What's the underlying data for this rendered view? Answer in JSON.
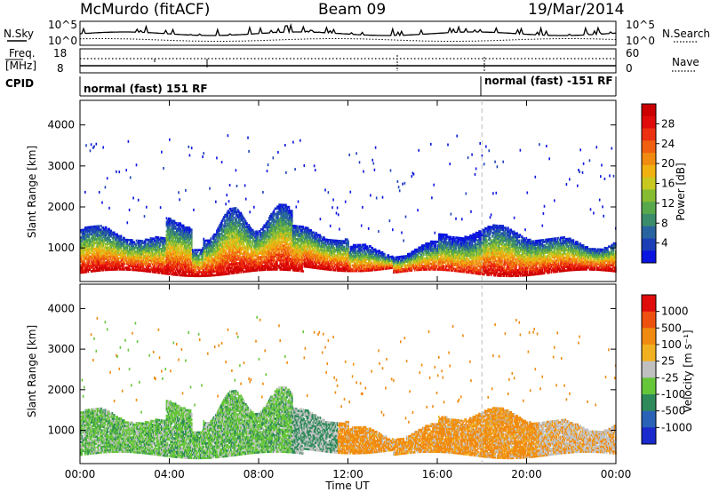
{
  "header": {
    "station": "McMurdo (fitACF)",
    "beam": "Beam 09",
    "date": "19/Mar/2014"
  },
  "params": {
    "nsky_label": "N.Sky",
    "nsearch_label": "N.Search",
    "freq_label_1": "Freq.",
    "freq_label_2": "[MHz]",
    "nave_label": "Nave",
    "cpid_label": "CPID",
    "noise_ticks_left": [
      "10^5",
      "10^0"
    ],
    "noise_ticks_right": [
      "10^5",
      "10^0"
    ],
    "freq_ticks": [
      "18",
      "8"
    ],
    "nave_ticks": [
      "60",
      "0"
    ],
    "cpid_segments": [
      {
        "label": "normal (fast) 151 RF",
        "start_hour": 0
      },
      {
        "label": "normal (fast) -151 RF",
        "start_hour": 18
      }
    ]
  },
  "chart_data": [
    {
      "type": "heatmap",
      "parameter": "power",
      "ylabel": "Slant Range [km]",
      "colorbar_label": "Power [dB]",
      "colorbar_ticks": [
        "28",
        "24",
        "20",
        "16",
        "12",
        "8",
        "4"
      ],
      "colorbar_range": [
        0,
        32
      ],
      "xlim_hours": [
        0,
        24
      ],
      "ylim_km": [
        180,
        4600
      ],
      "y_ticks": [
        "4000",
        "3000",
        "2000",
        "1000"
      ],
      "y_tick_values": [
        4000,
        3000,
        2000,
        1000
      ],
      "colors": [
        "#0a14e0",
        "#1c3fb8",
        "#2a64a0",
        "#3a8c6a",
        "#58a84c",
        "#86bc32",
        "#c8c820",
        "#f0b010",
        "#f08a10",
        "#f06010",
        "#ec3010",
        "#e00c0c",
        "#cc0000"
      ]
    },
    {
      "type": "heatmap",
      "parameter": "velocity",
      "ylabel": "Slant Range [km]",
      "colorbar_label": "Velocity [m s⁻¹]",
      "colorbar_ticks": [
        "1000",
        "500",
        "100",
        "25",
        "-25",
        "-100",
        "-500",
        "-1000"
      ],
      "xlim_hours": [
        0,
        24
      ],
      "ylim_km": [
        180,
        4600
      ],
      "y_ticks": [
        "4000",
        "3000",
        "2000",
        "1000"
      ],
      "y_tick_values": [
        4000,
        3000,
        2000,
        1000
      ],
      "colors": [
        "#1a2acc",
        "#2a62b8",
        "#2e8a5a",
        "#66c63a",
        "#c0c0c0",
        "#f0b020",
        "#f08a10",
        "#ee5010",
        "#e00c0c"
      ]
    }
  ],
  "xaxis": {
    "xlabel": "Time UT",
    "tick_labels": [
      "00:00",
      "04:00",
      "08:00",
      "12:00",
      "16:00",
      "20:00",
      "00:00"
    ],
    "tick_hours": [
      0,
      4,
      8,
      12,
      16,
      20,
      24
    ]
  }
}
